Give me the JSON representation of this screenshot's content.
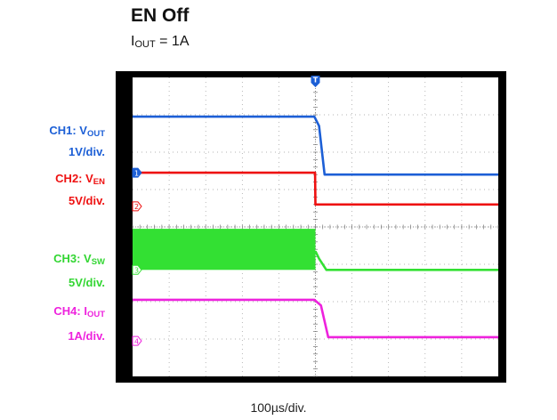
{
  "title": "EN Off",
  "subtitle": {
    "prefix": "I",
    "sub": "OUT",
    "suffix": " = 1A"
  },
  "channels": [
    {
      "id": "CH1",
      "prefix": "CH1: V",
      "sub": "OUT",
      "scale": "1V/div.",
      "color": "#1c5fd6",
      "marker": "1"
    },
    {
      "id": "CH2",
      "prefix": "CH2: V",
      "sub": "EN",
      "scale": "5V/div.",
      "color": "#ee1111",
      "marker": "2"
    },
    {
      "id": "CH3",
      "prefix": "CH3: V",
      "sub": "SW",
      "scale": "5V/div.",
      "color": "#33e033",
      "marker": "3"
    },
    {
      "id": "CH4",
      "prefix": "CH4: I",
      "sub": "OUT",
      "scale": "1A/div.",
      "color": "#ee22dd",
      "marker": "4"
    }
  ],
  "timebase": "100µs/div.",
  "trigger_marker": "T",
  "chart_data": {
    "type": "line",
    "title": "EN Off",
    "subtitle": "IOUT = 1A",
    "xlabel": "100µs/div.",
    "x_unit": "div",
    "x_range": [
      0,
      10
    ],
    "y_range_div": [
      -4,
      4
    ],
    "grid": true,
    "trigger_position_div": 5,
    "series": [
      {
        "name": "CH1: VOUT",
        "scale": "1V/div.",
        "ground_div": 1.45,
        "x": [
          0,
          4.97,
          5.1,
          5.25,
          10
        ],
        "y_div": [
          2.95,
          2.95,
          2.7,
          1.4,
          1.4
        ]
      },
      {
        "name": "CH2: VEN",
        "scale": "5V/div.",
        "ground_div": 0.55,
        "x": [
          0,
          4.99,
          5.0,
          10
        ],
        "y_div": [
          1.45,
          1.45,
          0.6,
          0.6
        ]
      },
      {
        "name": "CH3: VSW",
        "scale": "5V/div.",
        "ground_div": -1.15,
        "band_x": [
          0,
          5.0
        ],
        "band_y_div": [
          -1.15,
          -0.05
        ],
        "x": [
          5.0,
          5.1,
          5.3,
          10
        ],
        "y_div": [
          -0.65,
          -0.85,
          -1.15,
          -1.15
        ]
      },
      {
        "name": "CH4: IOUT",
        "scale": "1A/div.",
        "ground_div": -3.05,
        "x": [
          0,
          4.97,
          5.15,
          5.35,
          10
        ],
        "y_div": [
          -1.95,
          -1.95,
          -2.1,
          -2.95,
          -2.95
        ]
      }
    ]
  }
}
